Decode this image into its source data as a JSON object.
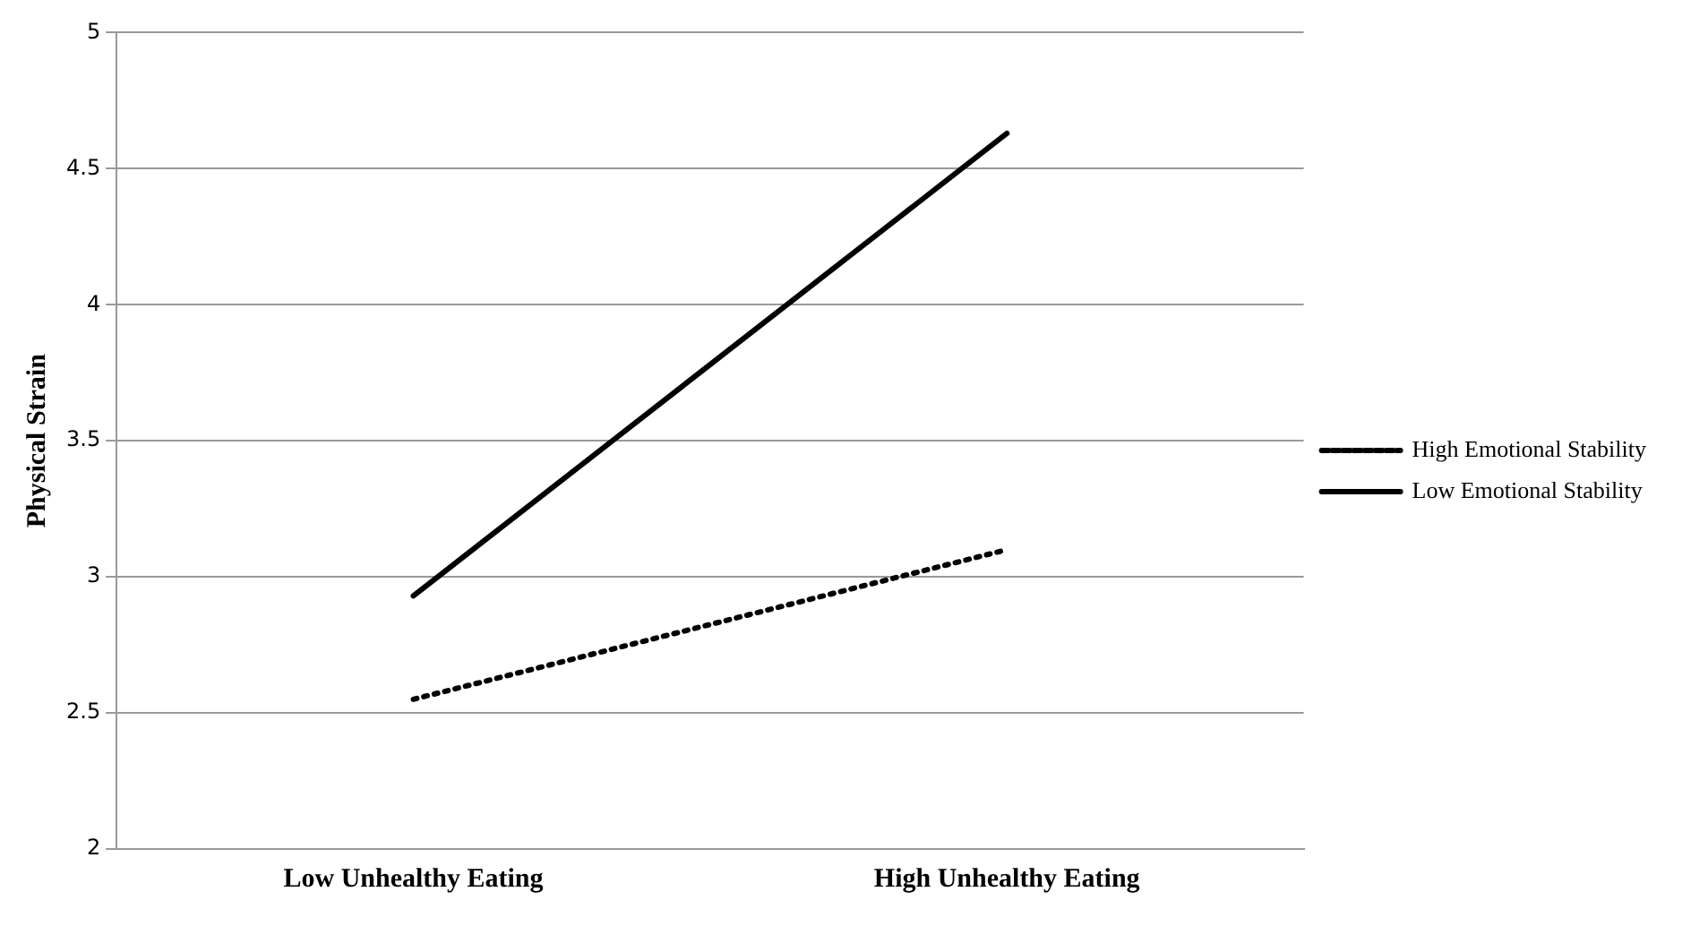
{
  "chart_data": {
    "type": "line",
    "ylabel": "Physical Strain",
    "categories": [
      "Low Unhealthy Eating",
      "High Unhealthy Eating"
    ],
    "series": [
      {
        "name": "High Emotional Stability",
        "color": "#000000",
        "values": [
          2.55,
          3.1
        ],
        "line_style": "dotted"
      },
      {
        "name": "Low Emotional Stability",
        "color": "#000000",
        "values": [
          2.93,
          4.63
        ],
        "line_style": "solid"
      }
    ],
    "ylim": [
      2,
      5
    ],
    "yticks": [
      2,
      2.5,
      3,
      3.5,
      4,
      4.5,
      5
    ],
    "grid": "y",
    "legend": "right",
    "marker": "none"
  }
}
